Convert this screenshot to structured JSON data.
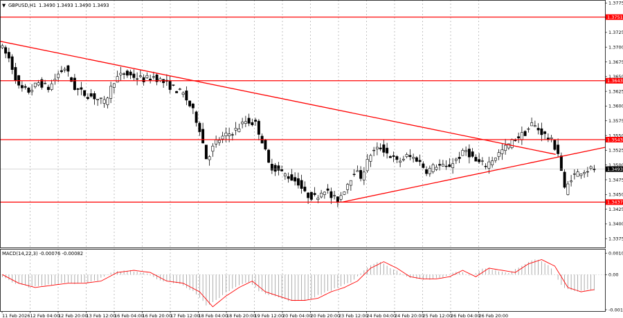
{
  "header": {
    "symbol": "GBPUSD,H1",
    "ohlc": "1.3490 1.3493 1.3490 1.3493",
    "menu_icon": "triangle-down-icon"
  },
  "macd": {
    "title": "MACD(14,22,3) -0.00076 -0.00082",
    "ticks": [
      "0.0010",
      "0.00",
      "-0.0017"
    ]
  },
  "colors": {
    "background": "#ffffff",
    "candles": "#000000",
    "levels": "#ff0000",
    "grid": "#9a9a9a",
    "macd_signal": "#ff0000",
    "macd_hist": "#9a9a9a"
  },
  "chart_data": {
    "type": "candlestick",
    "symbol": "GBPUSD",
    "timeframe": "H1",
    "price_range": [
      1.336,
      1.378
    ],
    "y_ticks": [
      "1.3775",
      "1.3750",
      "1.3725",
      "1.3700",
      "1.3675",
      "1.3650",
      "1.3625",
      "1.3600",
      "1.3575",
      "1.3550",
      "1.3525",
      "1.3500",
      "1.3475",
      "1.3450",
      "1.3425",
      "1.3400",
      "1.3375"
    ],
    "x_ticks": [
      "11 Feb 2026",
      "12 Feb 04:00",
      "12 Feb 20:00",
      "13 Feb 12:00",
      "16 Feb 04:00",
      "16 Feb 20:00",
      "17 Feb 12:00",
      "18 Feb 04:00",
      "18 Feb 20:00",
      "19 Feb 12:00",
      "20 Feb 04:00",
      "20 Feb 20:00",
      "23 Feb 12:00",
      "24 Feb 04:00",
      "24 Feb 20:00",
      "25 Feb 12:00",
      "26 Feb 04:00",
      "26 Feb 20:00"
    ],
    "horizontal_levels": [
      {
        "price": 1.3751,
        "label": "1.3751"
      },
      {
        "price": 1.3643,
        "label": "1.3643"
      },
      {
        "price": 1.3543,
        "label": "1.3543"
      },
      {
        "price": 1.3437,
        "label": "1.3437"
      }
    ],
    "current_price": {
      "price": 1.3493,
      "label": "1.3493"
    },
    "trendlines": [
      {
        "from": {
          "bar": 0,
          "price": 1.371
        },
        "to": {
          "bar": 169,
          "price": 1.3518
        }
      },
      {
        "from": {
          "bar": 104,
          "price": 1.3437
        },
        "to": {
          "bar": 184,
          "price": 1.353
        }
      }
    ],
    "price_path": [
      [
        0,
        1.3705
      ],
      [
        3,
        1.368
      ],
      [
        6,
        1.363
      ],
      [
        9,
        1.3625
      ],
      [
        12,
        1.364
      ],
      [
        15,
        1.363
      ],
      [
        18,
        1.3655
      ],
      [
        20,
        1.3665
      ],
      [
        23,
        1.363
      ],
      [
        26,
        1.362
      ],
      [
        29,
        1.3615
      ],
      [
        32,
        1.3605
      ],
      [
        35,
        1.3645
      ],
      [
        38,
        1.3655
      ],
      [
        41,
        1.365
      ],
      [
        44,
        1.3645
      ],
      [
        47,
        1.365
      ],
      [
        50,
        1.364
      ],
      [
        53,
        1.363
      ],
      [
        56,
        1.362
      ],
      [
        59,
        1.359
      ],
      [
        61,
        1.356
      ],
      [
        63,
        1.351
      ],
      [
        66,
        1.354
      ],
      [
        69,
        1.355
      ],
      [
        72,
        1.356
      ],
      [
        75,
        1.3575
      ],
      [
        78,
        1.357
      ],
      [
        80,
        1.354
      ],
      [
        82,
        1.35
      ],
      [
        85,
        1.349
      ],
      [
        88,
        1.348
      ],
      [
        91,
        1.347
      ],
      [
        93,
        1.345
      ],
      [
        96,
        1.3445
      ],
      [
        99,
        1.346
      ],
      [
        101,
        1.3445
      ],
      [
        103,
        1.344
      ],
      [
        105,
        1.346
      ],
      [
        108,
        1.349
      ],
      [
        110,
        1.348
      ],
      [
        113,
        1.352
      ],
      [
        116,
        1.353
      ],
      [
        118,
        1.352
      ],
      [
        121,
        1.3505
      ],
      [
        124,
        1.3515
      ],
      [
        127,
        1.351
      ],
      [
        130,
        1.349
      ],
      [
        133,
        1.35
      ],
      [
        136,
        1.3495
      ],
      [
        139,
        1.351
      ],
      [
        142,
        1.3525
      ],
      [
        145,
        1.3505
      ],
      [
        148,
        1.35
      ],
      [
        151,
        1.3515
      ],
      [
        154,
        1.353
      ],
      [
        157,
        1.3545
      ],
      [
        160,
        1.3555
      ],
      [
        162,
        1.357
      ],
      [
        164,
        1.356
      ],
      [
        166,
        1.355
      ],
      [
        168,
        1.354
      ],
      [
        170,
        1.352
      ],
      [
        172,
        1.3455
      ],
      [
        174,
        1.348
      ],
      [
        177,
        1.349
      ],
      [
        180,
        1.3493
      ]
    ],
    "macd_signal_path": [
      [
        0,
        0.0
      ],
      [
        5,
        -0.0004
      ],
      [
        10,
        -0.0006
      ],
      [
        15,
        -0.0005
      ],
      [
        20,
        -0.0004
      ],
      [
        25,
        -0.0004
      ],
      [
        30,
        -0.0003
      ],
      [
        35,
        0.0001
      ],
      [
        40,
        0.0002
      ],
      [
        45,
        0.0001
      ],
      [
        50,
        -0.0003
      ],
      [
        55,
        -0.0004
      ],
      [
        60,
        -0.0008
      ],
      [
        64,
        -0.0015
      ],
      [
        68,
        -0.001
      ],
      [
        72,
        -0.0006
      ],
      [
        76,
        -0.0003
      ],
      [
        80,
        -0.0008
      ],
      [
        84,
        -0.001
      ],
      [
        88,
        -0.0012
      ],
      [
        92,
        -0.0012
      ],
      [
        96,
        -0.0011
      ],
      [
        100,
        -0.0008
      ],
      [
        104,
        -0.0006
      ],
      [
        108,
        -0.0003
      ],
      [
        112,
        0.0003
      ],
      [
        116,
        0.0006
      ],
      [
        120,
        0.0003
      ],
      [
        124,
        -0.0001
      ],
      [
        128,
        -0.0002
      ],
      [
        132,
        -0.0002
      ],
      [
        136,
        -0.0001
      ],
      [
        140,
        0.0002
      ],
      [
        144,
        -0.0001
      ],
      [
        148,
        0.0003
      ],
      [
        152,
        0.0002
      ],
      [
        156,
        0.0001
      ],
      [
        160,
        0.0005
      ],
      [
        164,
        0.0007
      ],
      [
        168,
        0.0004
      ],
      [
        172,
        -0.0006
      ],
      [
        176,
        -0.0008
      ],
      [
        180,
        -0.0007
      ]
    ]
  }
}
